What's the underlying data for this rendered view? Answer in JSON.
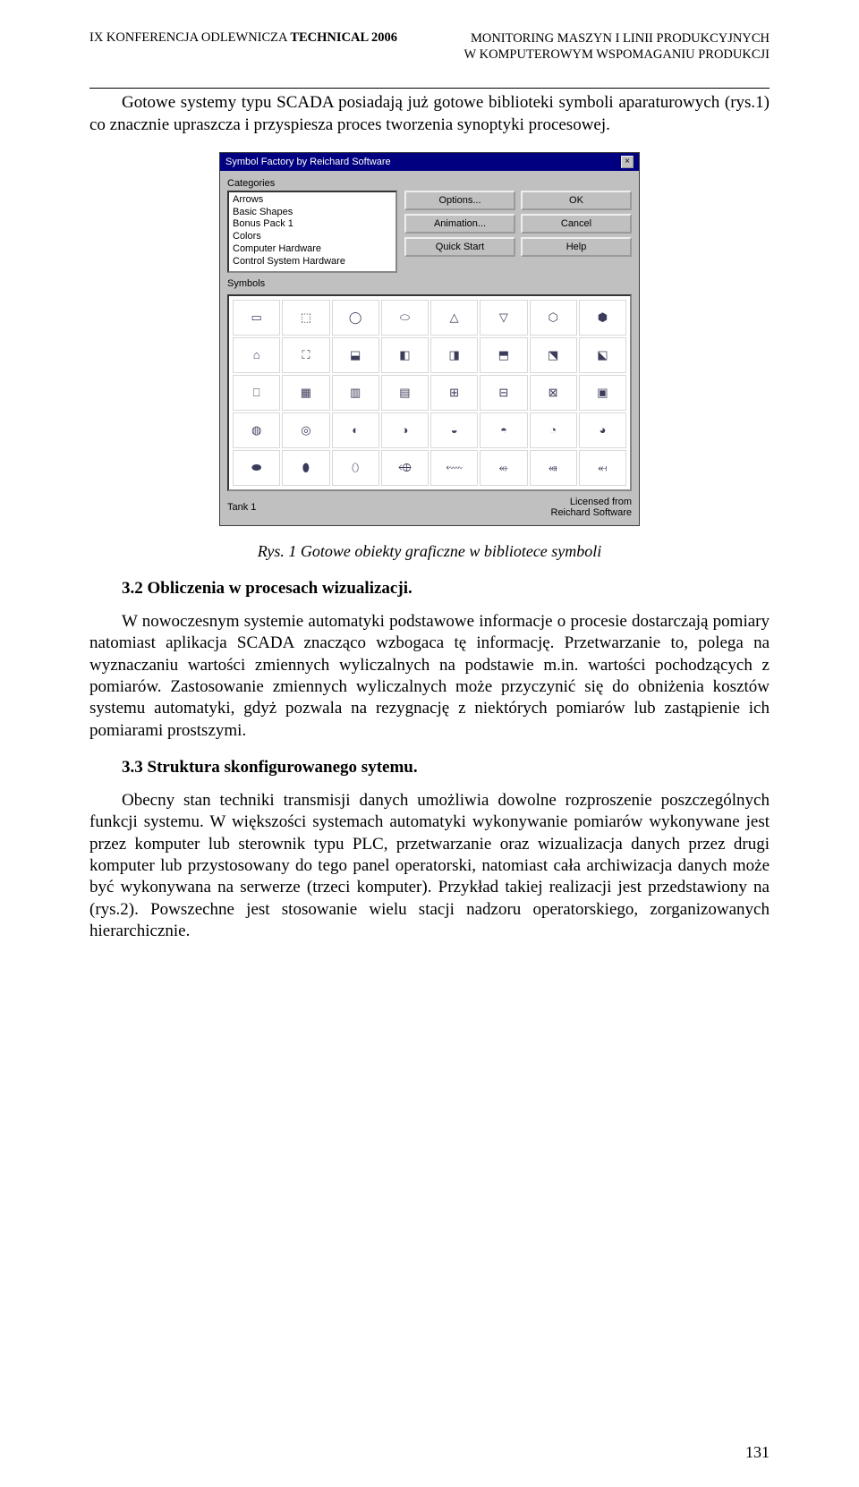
{
  "header": {
    "left_prefix": "IX KONFERENCJA ODLEWNICZA ",
    "left_bold": "TECHNICAL 2006",
    "right_line1": "MONITORING MASZYN I LINII PRODUKCYJNYCH",
    "right_line2": "W KOMPUTEROWYM WSPOMAGANIU PRODUKCJI"
  },
  "intro_para": "Gotowe systemy typu SCADA posiadają już gotowe biblioteki symboli aparaturowych (rys.1) co znacznie upraszcza i przyspiesza proces tworzenia synoptyki procesowej.",
  "figure": {
    "caption": "Rys. 1 Gotowe obiekty graficzne w bibliotece symboli",
    "window_title": "Symbol Factory by Reichard Software",
    "categories_label": "Categories",
    "symbols_label": "Symbols",
    "categories": [
      "Arrows",
      "Basic Shapes",
      "Bonus Pack 1",
      "Colors",
      "Computer Hardware",
      "Control System Hardware"
    ],
    "buttons": {
      "options": "Options...",
      "animation": "Animation...",
      "quick_start": "Quick Start",
      "ok": "OK",
      "cancel": "Cancel",
      "help": "Help"
    },
    "selected_symbol": "Tank 1",
    "license_line1": "Licensed from",
    "license_line2": "Reichard Software",
    "cells": [
      "▭",
      "⬚",
      "◯",
      "⬭",
      "△",
      "▽",
      "⬡",
      "⬢",
      "⌂",
      "⛶",
      "⬓",
      "◧",
      "◨",
      "⬒",
      "⬔",
      "⬕",
      "⎕",
      "▦",
      "▥",
      "▤",
      "⊞",
      "⊟",
      "⊠",
      "▣",
      "◍",
      "◎",
      "◐",
      "◑",
      "◒",
      "◓",
      "◔",
      "◕",
      "⬬",
      "⬮",
      "⬯",
      "⬲",
      "⬳",
      "⬴",
      "⬵",
      "⬶"
    ]
  },
  "sec32": {
    "heading": "3.2 Obliczenia w procesach wizualizacji.",
    "para1": "W nowoczesnym systemie automatyki podstawowe informacje o procesie dostarczają pomiary natomiast aplikacja SCADA znacząco wzbogaca tę informację. Przetwarzanie to, polega na wyznaczaniu wartości zmiennych wyliczalnych na podstawie m.in. wartości pochodzących z pomiarów. Zastosowanie zmiennych wyliczalnych może przyczynić się do obniżenia kosztów systemu automatyki, gdyż pozwala na rezygnację z niektórych pomiarów lub zastąpienie ich pomiarami prostszymi."
  },
  "sec33": {
    "heading": "3.3 Struktura skonfigurowanego sytemu.",
    "para1": "Obecny stan techniki transmisji danych umożliwia dowolne rozproszenie poszczególnych funkcji systemu. W większości systemach automatyki wykonywanie pomiarów wykonywane jest przez komputer lub sterownik typu PLC, przetwarzanie oraz wizualizacja danych przez drugi komputer lub przystosowany do tego panel operatorski, natomiast cała archiwizacja danych może być wykonywana na serwerze (trzeci komputer). Przykład takiej realizacji jest przedstawiony na (rys.2). Powszechne jest stosowanie wielu stacji nadzoru operatorskiego, zorganizowanych hierarchicznie."
  },
  "page_number": "131"
}
